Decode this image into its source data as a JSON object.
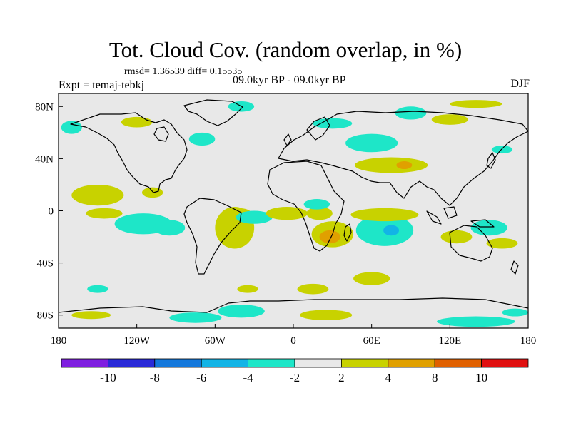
{
  "title": "Tot. Cloud Cov. (random overlap, in %)",
  "stats": "rmsd= 1.36539 diff= 0.15535",
  "experiment": "Expt = temaj-tebkj",
  "period": "09.0kyr BP - 09.0kyr BP",
  "season": "DJF",
  "chart_data": {
    "type": "heatmap",
    "projection": "cylindrical-equidistant",
    "lon_range": [
      -180,
      180
    ],
    "lat_range": [
      -90,
      90
    ],
    "x_ticks": [
      {
        "value": -180,
        "label": "180"
      },
      {
        "value": -120,
        "label": "120W"
      },
      {
        "value": -60,
        "label": "60W"
      },
      {
        "value": 0,
        "label": "0"
      },
      {
        "value": 60,
        "label": "60E"
      },
      {
        "value": 120,
        "label": "120E"
      },
      {
        "value": 180,
        "label": "180"
      }
    ],
    "y_ticks": [
      {
        "value": 80,
        "label": "80N"
      },
      {
        "value": 40,
        "label": "40N"
      },
      {
        "value": 0,
        "label": "0"
      },
      {
        "value": -40,
        "label": "40S"
      },
      {
        "value": -80,
        "label": "80S"
      }
    ],
    "colorbar": {
      "bins": [
        {
          "color": "#7f1fe0"
        },
        {
          "color": "#2a2ad8"
        },
        {
          "color": "#1478dc"
        },
        {
          "color": "#12b4e6"
        },
        {
          "color": "#1ee6c8"
        },
        {
          "color": "#e8e8e8"
        },
        {
          "color": "#c8d200"
        },
        {
          "color": "#e0a000"
        },
        {
          "color": "#e06000"
        },
        {
          "color": "#e01010"
        }
      ],
      "labels": [
        "-10",
        "-8",
        "-6",
        "-4",
        "-2",
        "2",
        "4",
        "8",
        "10"
      ]
    },
    "anomalies": [
      {
        "lon": -150,
        "lat": 12,
        "rlon": 20,
        "rlat": 8,
        "level": "pos"
      },
      {
        "lon": -145,
        "lat": -2,
        "rlon": 14,
        "rlat": 4,
        "level": "pos"
      },
      {
        "lon": -115,
        "lat": -10,
        "rlon": 22,
        "rlat": 8,
        "level": "neg"
      },
      {
        "lon": -95,
        "lat": -13,
        "rlon": 12,
        "rlat": 6,
        "level": "neg"
      },
      {
        "lon": -108,
        "lat": 14,
        "rlon": 8,
        "rlat": 4,
        "level": "pos"
      },
      {
        "lon": -45,
        "lat": -13,
        "rlon": 15,
        "rlat": 16,
        "level": "pos"
      },
      {
        "lon": -42,
        "lat": -2,
        "rlon": 10,
        "rlat": 4,
        "level": "pos"
      },
      {
        "lon": -30,
        "lat": -5,
        "rlon": 14,
        "rlat": 5,
        "level": "neg"
      },
      {
        "lon": -5,
        "lat": -2,
        "rlon": 16,
        "rlat": 5,
        "level": "pos"
      },
      {
        "lon": 20,
        "lat": -2,
        "rlon": 10,
        "rlat": 5,
        "level": "pos"
      },
      {
        "lon": 18,
        "lat": 5,
        "rlon": 10,
        "rlat": 4,
        "level": "neg"
      },
      {
        "lon": 30,
        "lat": -18,
        "rlon": 16,
        "rlat": 10,
        "level": "pos"
      },
      {
        "lon": 28,
        "lat": -20,
        "rlon": 8,
        "rlat": 5,
        "level": "pos2"
      },
      {
        "lon": 70,
        "lat": -15,
        "rlon": 22,
        "rlat": 12,
        "level": "neg"
      },
      {
        "lon": 70,
        "lat": -3,
        "rlon": 26,
        "rlat": 5,
        "level": "pos"
      },
      {
        "lon": 75,
        "lat": -15,
        "rlon": 6,
        "rlat": 4,
        "level": "neg2"
      },
      {
        "lon": 60,
        "lat": 52,
        "rlon": 20,
        "rlat": 7,
        "level": "neg"
      },
      {
        "lon": 75,
        "lat": 35,
        "rlon": 28,
        "rlat": 6,
        "level": "pos"
      },
      {
        "lon": 85,
        "lat": 35,
        "rlon": 6,
        "rlat": 3,
        "level": "pos2"
      },
      {
        "lon": 30,
        "lat": 67,
        "rlon": 15,
        "rlat": 4,
        "level": "neg"
      },
      {
        "lon": 90,
        "lat": 75,
        "rlon": 12,
        "rlat": 5,
        "level": "neg"
      },
      {
        "lon": 120,
        "lat": 70,
        "rlon": 14,
        "rlat": 4,
        "level": "pos"
      },
      {
        "lon": 140,
        "lat": 82,
        "rlon": 20,
        "rlat": 3,
        "level": "pos"
      },
      {
        "lon": -120,
        "lat": 68,
        "rlon": 12,
        "rlat": 4,
        "level": "pos"
      },
      {
        "lon": -40,
        "lat": 80,
        "rlon": 10,
        "rlat": 4,
        "level": "neg"
      },
      {
        "lon": -70,
        "lat": 55,
        "rlon": 10,
        "rlat": 5,
        "level": "neg"
      },
      {
        "lon": -170,
        "lat": 64,
        "rlon": 8,
        "rlat": 5,
        "level": "neg"
      },
      {
        "lon": 160,
        "lat": 47,
        "rlon": 8,
        "rlat": 3,
        "level": "neg"
      },
      {
        "lon": 150,
        "lat": -13,
        "rlon": 14,
        "rlat": 6,
        "level": "neg"
      },
      {
        "lon": 125,
        "lat": -20,
        "rlon": 12,
        "rlat": 5,
        "level": "pos"
      },
      {
        "lon": 160,
        "lat": -25,
        "rlon": 12,
        "rlat": 4,
        "level": "pos"
      },
      {
        "lon": -150,
        "lat": -60,
        "rlon": 8,
        "rlat": 3,
        "level": "neg"
      },
      {
        "lon": -35,
        "lat": -60,
        "rlon": 8,
        "rlat": 3,
        "level": "pos"
      },
      {
        "lon": 15,
        "lat": -60,
        "rlon": 12,
        "rlat": 4,
        "level": "pos"
      },
      {
        "lon": 60,
        "lat": -52,
        "rlon": 14,
        "rlat": 5,
        "level": "pos"
      },
      {
        "lon": -40,
        "lat": -77,
        "rlon": 18,
        "rlat": 5,
        "level": "neg"
      },
      {
        "lon": -75,
        "lat": -82,
        "rlon": 20,
        "rlat": 4,
        "level": "neg"
      },
      {
        "lon": 25,
        "lat": -80,
        "rlon": 20,
        "rlat": 4,
        "level": "pos"
      },
      {
        "lon": 140,
        "lat": -85,
        "rlon": 30,
        "rlat": 4,
        "level": "neg"
      },
      {
        "lon": -155,
        "lat": -80,
        "rlon": 15,
        "rlat": 3,
        "level": "pos"
      },
      {
        "lon": 170,
        "lat": -78,
        "rlon": 10,
        "rlat": 3,
        "level": "neg"
      }
    ]
  }
}
